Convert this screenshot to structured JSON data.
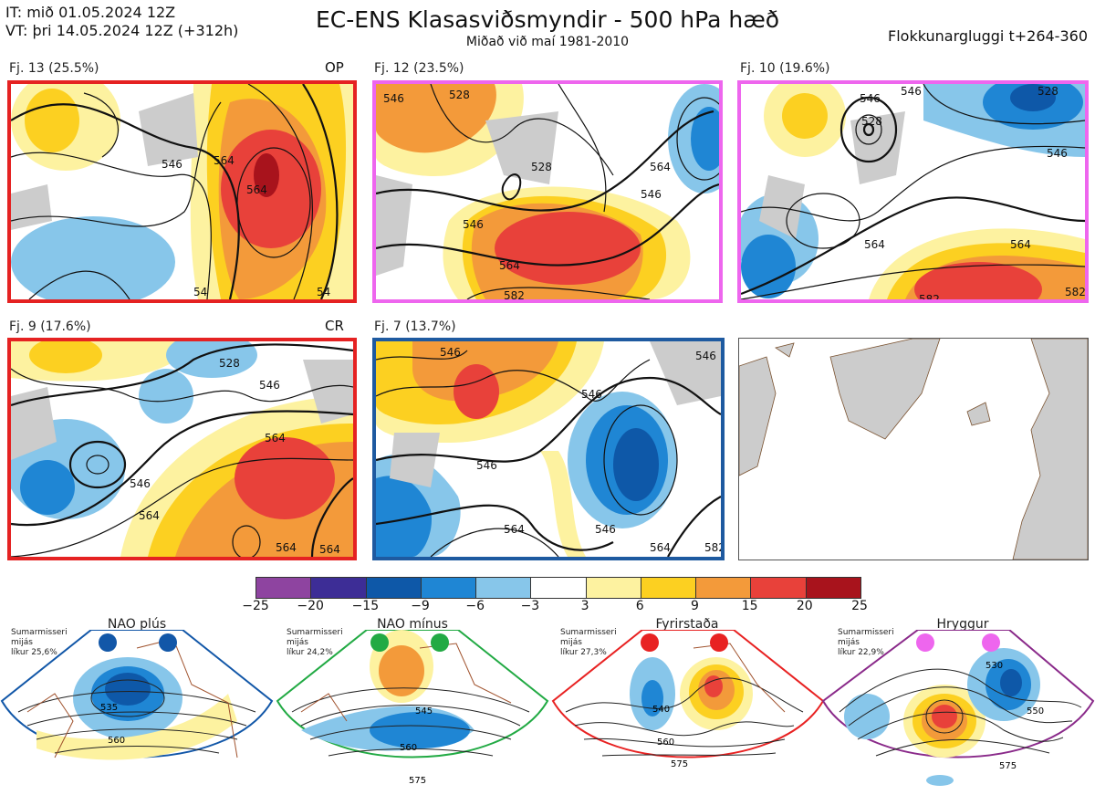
{
  "header": {
    "it_line": "IT: mið 01.05.2024 12Z",
    "vt_line": "VT: þri 14.05.2024 12Z  (+312h)",
    "title": "EC-ENS Klasasviðsmyndir - 500 hPa hæð",
    "subtitle": "Miðað við maí 1981-2010",
    "window": "Flokkunargluggi t+264-360"
  },
  "panels": [
    {
      "label": "Fj. 13 (25.5%)",
      "tag": "OP",
      "border": "#e52222",
      "contours": [
        "546",
        "564",
        "564",
        "54",
        "54"
      ]
    },
    {
      "label": "Fj. 12 (23.5%)",
      "tag": "",
      "border": "#ee66ee",
      "contours": [
        "546",
        "564",
        "528",
        "546",
        "564",
        "582",
        "546",
        "528"
      ]
    },
    {
      "label": "Fj. 10 (19.6%)",
      "tag": "",
      "border": "#ee66ee",
      "contours": [
        "546",
        "528",
        "546",
        "546",
        "564",
        "564",
        "582",
        "582",
        "528"
      ]
    },
    {
      "label": "Fj. 9 (17.6%)",
      "tag": "CR",
      "border": "#e52222",
      "contours": [
        "528",
        "546",
        "564",
        "546",
        "564",
        "564",
        "564"
      ]
    },
    {
      "label": "Fj. 7 (13.7%)",
      "tag": "",
      "border": "#1e5aa0",
      "contours": [
        "546",
        "546",
        "546",
        "564",
        "546",
        "564",
        "582",
        "546"
      ]
    }
  ],
  "colorbar": {
    "ticks": [
      "−25",
      "−20",
      "−15",
      "−9",
      "−6",
      "−3",
      "3",
      "6",
      "9",
      "15",
      "20",
      "25"
    ],
    "colors": [
      "#8e44a0",
      "#3d2d96",
      "#0e58a8",
      "#1f86d4",
      "#87c6ea",
      "#ffffff",
      "#fdf2a0",
      "#fcd021",
      "#f39a3a",
      "#e8413a",
      "#a8131c"
    ]
  },
  "regimes": [
    {
      "title": "NAO plús",
      "note1": "Sumarmisseri",
      "note2": "mijás",
      "note3": "líkur 25,6%",
      "dot_color": "#1257a8",
      "border": "#1257a8",
      "labels": [
        "535",
        "560"
      ]
    },
    {
      "title": "NAO mínus",
      "note1": "Sumarmisseri",
      "note2": "mijás",
      "note3": "líkur 24,2%",
      "dot_color": "#22aa44",
      "border": "#22aa44",
      "labels": [
        "545",
        "560",
        "575"
      ]
    },
    {
      "title": "Fyrirstaða",
      "note1": "Sumarmisseri",
      "note2": "mijás",
      "note3": "líkur 27,3%",
      "dot_color": "#e82222",
      "border": "#e82222",
      "labels": [
        "540",
        "560",
        "575"
      ]
    },
    {
      "title": "Hryggur",
      "note1": "Sumarmisseri",
      "note2": "mijás",
      "note3": "líkur 22,9%",
      "dot_color": "#ee66ee",
      "border": "#8a2a8a",
      "labels": [
        "530",
        "550",
        "575"
      ]
    }
  ]
}
